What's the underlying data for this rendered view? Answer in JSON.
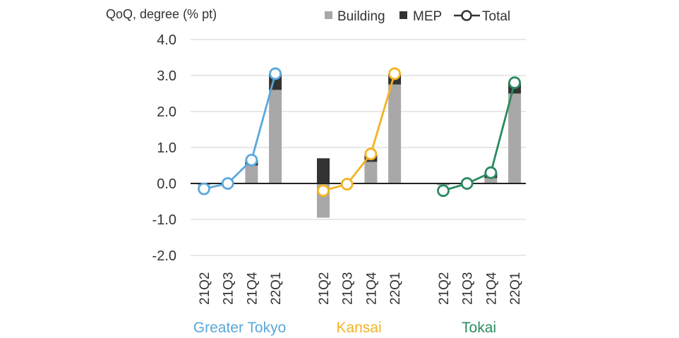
{
  "chart_data": {
    "type": "bar",
    "ylabel": "QoQ, degree (% pt)",
    "ylim": [
      -2.0,
      4.0
    ],
    "yticks": [
      "4.0",
      "3.0",
      "2.0",
      "1.0",
      "0.0",
      "-1.0",
      "-2.0"
    ],
    "ytick_values": [
      4,
      3,
      2,
      1,
      0,
      -1,
      -2
    ],
    "grid": true,
    "legend": {
      "position": "top-right",
      "items": [
        {
          "label": "Building",
          "kind": "bar",
          "color": "#a9a7a8"
        },
        {
          "label": "MEP",
          "kind": "bar",
          "color": "#333333"
        },
        {
          "label": "Total",
          "kind": "line"
        }
      ]
    },
    "categories": [
      "21Q2",
      "21Q3",
      "21Q4",
      "22Q1"
    ],
    "groups": [
      {
        "name": "Greater Tokyo",
        "color": "#5aa8dc",
        "building": [
          -0.05,
          0.0,
          0.5,
          2.6
        ],
        "mep": [
          0.0,
          0.0,
          0.15,
          0.45
        ],
        "total": [
          -0.15,
          0.0,
          0.65,
          3.05
        ]
      },
      {
        "name": "Kansai",
        "color": "#f2b322",
        "building": [
          -0.95,
          -0.05,
          0.6,
          2.75
        ],
        "mep": [
          0.7,
          0.0,
          0.2,
          0.3
        ],
        "total": [
          -0.2,
          -0.02,
          0.82,
          3.05
        ]
      },
      {
        "name": "Tokai",
        "color": "#2a8a5e",
        "building": [
          -0.05,
          0.0,
          0.15,
          2.5
        ],
        "mep": [
          0.0,
          0.0,
          0.15,
          0.3
        ],
        "total": [
          -0.2,
          0.0,
          0.3,
          2.8
        ]
      }
    ]
  }
}
